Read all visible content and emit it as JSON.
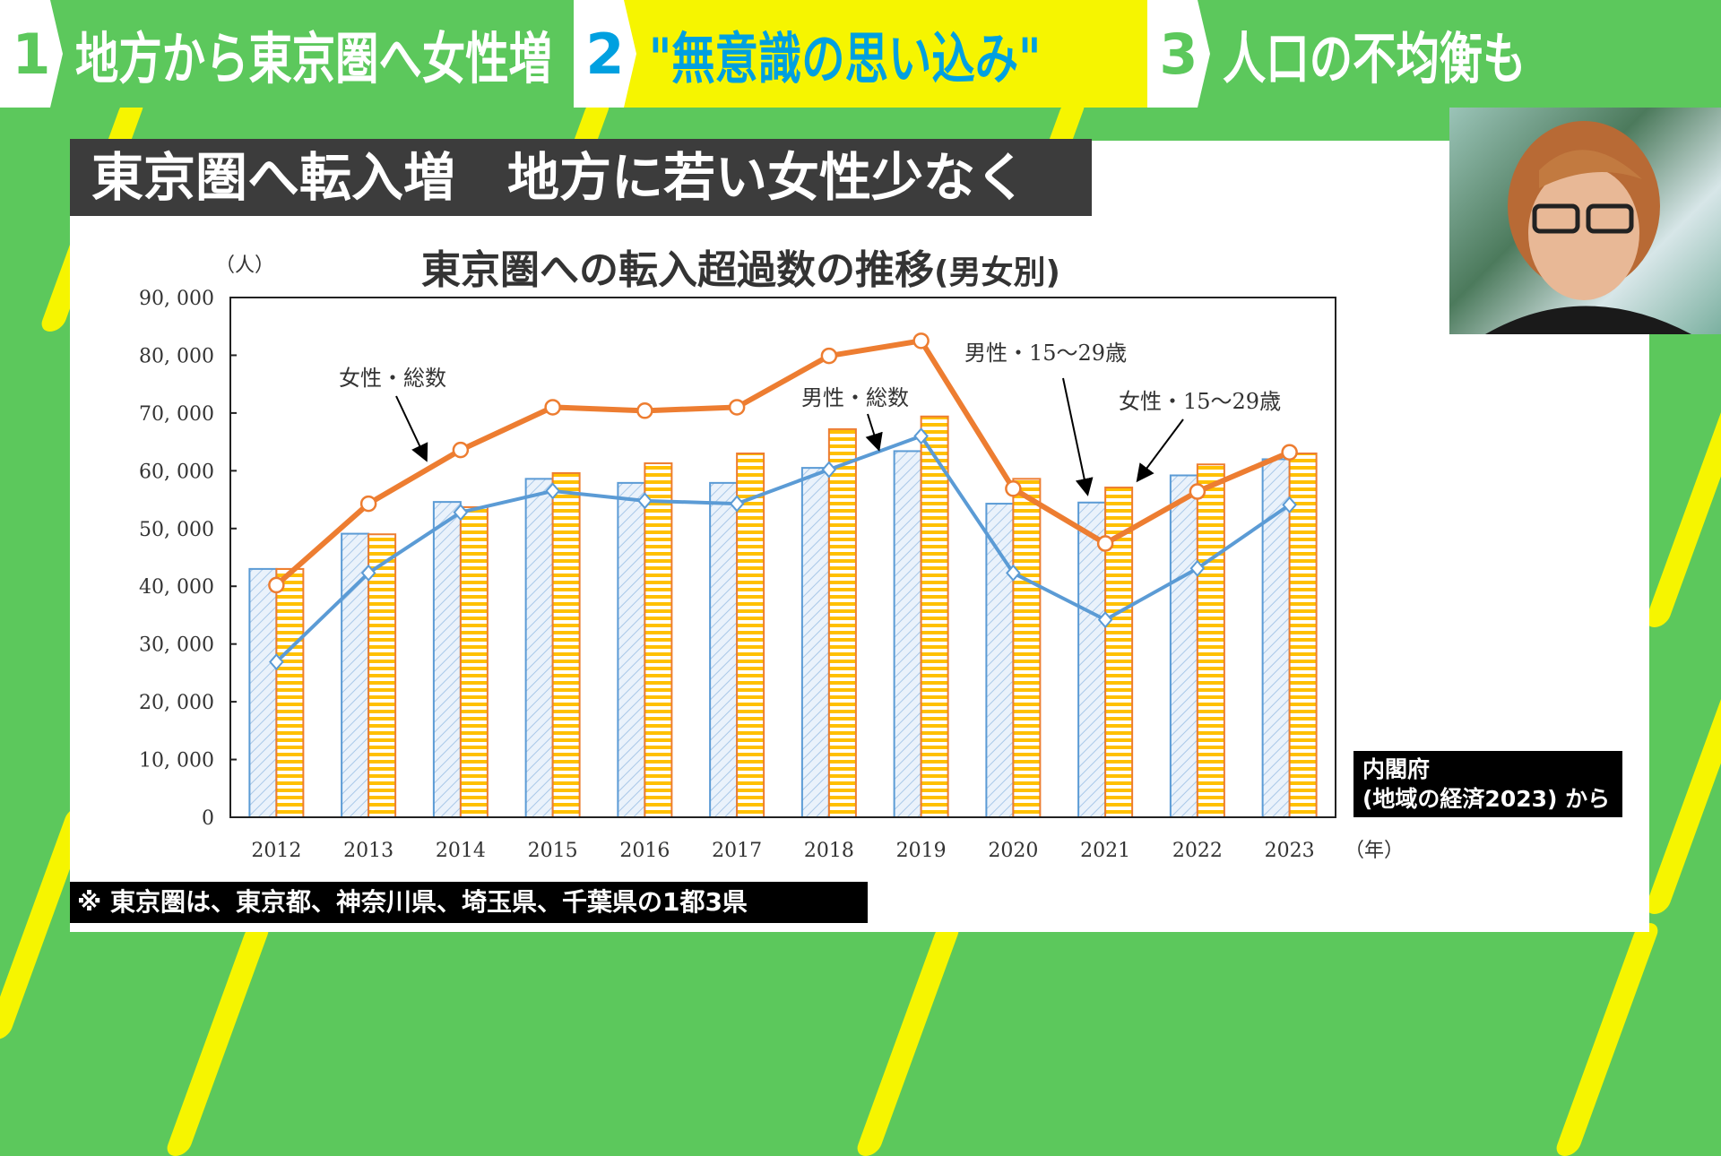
{
  "topbar": {
    "items": [
      {
        "num": "1",
        "label": "地方から東京圏へ女性増",
        "num_color": "#5cc85c",
        "bg": "#5cc85c",
        "text_color": "#ffffff"
      },
      {
        "num": "2",
        "label": "\"無意識の思い込み\"",
        "num_color": "#00a0e0",
        "bg": "#f6f500",
        "text_color": "#00a0e0"
      },
      {
        "num": "3",
        "label": "人口の不均衡も",
        "num_color": "#5cc85c",
        "bg": "#5cc85c",
        "text_color": "#ffffff"
      }
    ]
  },
  "headline": "東京圏へ転入増　地方に若い女性少なく",
  "source": {
    "line1": "内閣府",
    "line2": "(地域の経済2023) から"
  },
  "footnote": "※ 東京圏は、東京都、神奈川県、埼玉県、千葉県の1都3県",
  "chart_data": {
    "type": "bar+line",
    "title": "東京圏への転入超過数の推移",
    "subtitle": "(男女別)",
    "ylabel": "（人）",
    "xlabel": "（年）",
    "ylim": [
      0,
      90000
    ],
    "yticks": [
      "0",
      "10, 000",
      "20, 000",
      "30, 000",
      "40, 000",
      "50, 000",
      "60, 000",
      "70, 000",
      "80, 000",
      "90, 000"
    ],
    "categories": [
      "2012",
      "2013",
      "2014",
      "2015",
      "2016",
      "2017",
      "2018",
      "2019",
      "2020",
      "2021",
      "2022",
      "2023"
    ],
    "series": [
      {
        "name": "男性・15～29歳",
        "kind": "bar",
        "color": "#5b9bd5",
        "values": [
          43000,
          49100,
          54600,
          58600,
          57900,
          57900,
          60500,
          63400,
          54300,
          54500,
          59200,
          62000
        ]
      },
      {
        "name": "女性・15～29歳",
        "kind": "bar",
        "color": "#ed7d31",
        "values": [
          43000,
          49000,
          53700,
          59600,
          61300,
          63000,
          67200,
          69400,
          58600,
          57100,
          61100,
          63000
        ]
      },
      {
        "name": "女性・総数",
        "kind": "line",
        "color": "#ed7d31",
        "marker": "circle",
        "values": [
          40200,
          54300,
          63600,
          71000,
          70400,
          71000,
          79900,
          82500,
          56900,
          47400,
          56400,
          63200
        ]
      },
      {
        "name": "男性・総数",
        "kind": "line",
        "color": "#5b9bd5",
        "marker": "diamond",
        "values": [
          26900,
          42300,
          52800,
          56500,
          54800,
          54300,
          60200,
          66000,
          42300,
          34200,
          43100,
          54100
        ]
      }
    ],
    "grid": false
  }
}
